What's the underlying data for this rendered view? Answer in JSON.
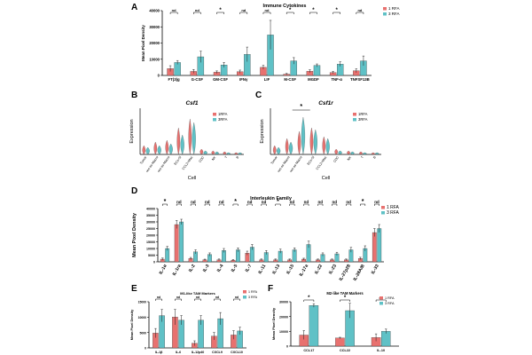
{
  "colors": {
    "rfa1": "#e8716f",
    "rfa3": "#5fc1c6",
    "axis": "#000000",
    "sig": "#000000"
  },
  "chart_data": [
    {
      "panel": "A",
      "type": "bar",
      "title": "Immune Cytokines",
      "ylabel": "Mean Pixel Density",
      "yticks": [
        "0",
        "10000",
        "20000",
        "30000",
        "40000"
      ],
      "ylim": [
        0,
        40000
      ],
      "categories": [
        "FT(3)g",
        "G-CSF",
        "GM-CSF",
        "IFNγ",
        "LIF",
        "M-CSF",
        "MGDF",
        "TNF-α",
        "TNFSF13B"
      ],
      "series": [
        {
          "name": "1 RFA",
          "values": [
            4200,
            2500,
            2000,
            2300,
            5000,
            800,
            2600,
            1800,
            2900
          ],
          "err": [
            1800,
            1200,
            800,
            1000,
            1200,
            400,
            900,
            700,
            1200
          ]
        },
        {
          "name": "3 RFA",
          "values": [
            8000,
            11500,
            6500,
            13000,
            25000,
            9000,
            6200,
            7000,
            9000
          ],
          "err": [
            1200,
            3500,
            1500,
            4500,
            9000,
            2000,
            900,
            1400,
            3000
          ]
        }
      ],
      "sig": [
        "nd",
        "nd",
        "*",
        "nd",
        "nd",
        "*",
        "*",
        "*",
        "nd"
      ],
      "legend": "top-right"
    },
    {
      "panel": "B",
      "type": "violin",
      "title": "Csf1",
      "xlabel": "Cell",
      "ylabel": "Expression",
      "categories": [
        "Tumor",
        "ren-ss-Macro",
        "ren-ss-Macro",
        "ECs-Sl",
        "CCL2+Mac",
        "CDC",
        "NK",
        "T",
        "B"
      ],
      "legend_labels": [
        "1RFA",
        "3RFA"
      ]
    },
    {
      "panel": "C",
      "type": "violin",
      "title": "Csf1r",
      "xlabel": "Cell",
      "ylabel": "Expression",
      "categories": [
        "Tumor",
        "ren-ss-Macro",
        "ren-ss-Macro",
        "ECs-Sl",
        "CCL2+Mac",
        "CDC",
        "NK",
        "T",
        "B"
      ],
      "legend_labels": [
        "1RFA",
        "3RFA"
      ],
      "sig_mark": "*"
    },
    {
      "panel": "D",
      "type": "bar",
      "title": "Interleukin Family",
      "ylabel": "Mean Pixel Density",
      "yticks": [
        "0",
        "5000",
        "10000",
        "15000",
        "20000",
        "25000",
        "30000",
        "35000",
        "40000"
      ],
      "ylim": [
        0,
        40000
      ],
      "categories": [
        "IL-1α",
        "IL-1ra",
        "IL-2",
        "IL-3",
        "IL-4",
        "IL-5",
        "IL-7",
        "IL-11",
        "IL-13",
        "IL-15",
        "IL-17a",
        "IL-22",
        "IL-23",
        "IL-27p28",
        "IL-28A/B",
        "IL-33"
      ],
      "series": [
        {
          "name": "1 RFA",
          "values": [
            2000,
            28000,
            2500,
            1500,
            1500,
            1200,
            6500,
            1500,
            1500,
            1500,
            2000,
            1500,
            1500,
            1500,
            2500,
            22000
          ],
          "err": [
            800,
            3000,
            800,
            500,
            600,
            500,
            1500,
            600,
            600,
            600,
            700,
            600,
            600,
            600,
            900,
            3000
          ]
        },
        {
          "name": "3 RFA",
          "values": [
            10000,
            30000,
            7500,
            5500,
            8500,
            9000,
            11000,
            7000,
            8000,
            9000,
            13000,
            5500,
            6000,
            9000,
            10000,
            25000
          ],
          "err": [
            1500,
            2000,
            1500,
            1200,
            1500,
            1500,
            2000,
            1500,
            1500,
            1500,
            2500,
            1200,
            1200,
            1800,
            2000,
            3000
          ]
        }
      ],
      "sig": [
        "*",
        "nd",
        "nd",
        "nd",
        "nd",
        "*",
        "nd",
        "nd",
        "*",
        "nd",
        "nd",
        "nd",
        "nd",
        "nd",
        "*",
        "nd"
      ],
      "legend": "top-right"
    },
    {
      "panel": "E",
      "type": "bar",
      "title": "M1-like TAM Markers",
      "ylabel": "Mean Pixel Density",
      "yticks": [
        "0",
        "5000",
        "10000",
        "15000"
      ],
      "ylim": [
        0,
        15000
      ],
      "categories": [
        "IL-1β",
        "IL-6",
        "IL-12p40",
        "CXCL9",
        "CXCL10"
      ],
      "series": [
        {
          "name": "1 RFA",
          "values": [
            4800,
            10000,
            1500,
            3800,
            4200
          ],
          "err": [
            1500,
            2500,
            800,
            1200,
            1400
          ]
        },
        {
          "name": "3 RFA",
          "values": [
            10500,
            9000,
            9000,
            9500,
            5500
          ],
          "err": [
            2000,
            1500,
            1500,
            2000,
            1200
          ]
        }
      ],
      "sig": [
        "nd",
        "nd",
        "nd",
        "nd",
        "nd"
      ],
      "legend": "top-right"
    },
    {
      "panel": "F",
      "type": "bar",
      "title": "M2-like TAM Markers",
      "ylabel": "Mean Pixel Density",
      "yticks": [
        "0",
        "10000",
        "20000",
        "30000"
      ],
      "ylim": [
        0,
        30000
      ],
      "categories": [
        "CCL17",
        "CCL22",
        "IL-10"
      ],
      "series": [
        {
          "name": "1 RFA",
          "values": [
            7500,
            5500,
            5800
          ],
          "err": [
            3000,
            500,
            2500
          ]
        },
        {
          "name": "3 RFA",
          "values": [
            27500,
            24000,
            10000
          ],
          "err": [
            1200,
            5000,
            1500
          ]
        }
      ],
      "sig": [
        "*",
        "*",
        "nd"
      ],
      "legend": "top-right"
    }
  ],
  "panel_labels": [
    "A",
    "B",
    "C",
    "D",
    "E",
    "F"
  ]
}
